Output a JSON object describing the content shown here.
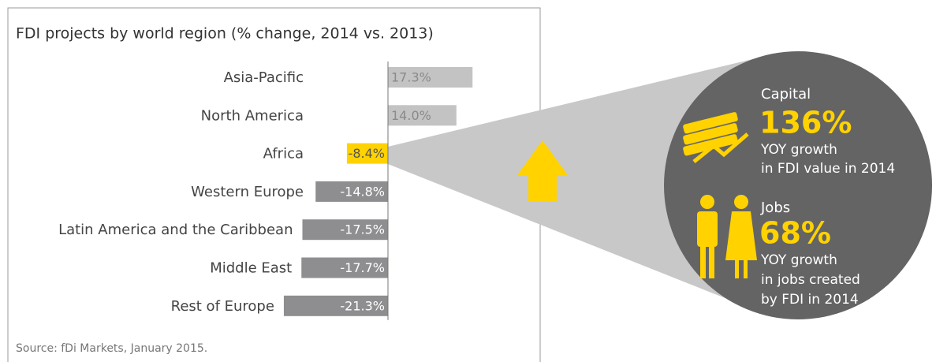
{
  "chart_data": {
    "type": "bar",
    "title": "FDI projects by world region (% change, 2014 vs. 2013)",
    "categories": [
      "Asia-Pacific",
      "North America",
      "Africa",
      "Western Europe",
      "Latin America and the Caribbean",
      "Middle East",
      "Rest of Europe"
    ],
    "values": [
      17.3,
      14.0,
      -8.4,
      -14.8,
      -17.5,
      -17.7,
      -21.3
    ],
    "value_labels": [
      "17.3%",
      "14.0%",
      "-8.4%",
      "-14.8%",
      "-17.5%",
      "-17.7%",
      "-21.3%"
    ],
    "colors": [
      "#c3c3c3",
      "#c3c3c3",
      "#ffd200",
      "#8e8e90",
      "#8e8e90",
      "#8e8e90",
      "#8e8e90"
    ],
    "source": "Source: fDi Markets, January 2015."
  },
  "callout": {
    "capital": {
      "label": "Capital",
      "value": "136%",
      "lines": [
        "YOY growth",
        "in FDI value in 2014"
      ]
    },
    "jobs": {
      "label": "Jobs",
      "value": "68%",
      "lines": [
        "YOY growth",
        "in jobs created",
        "by FDI in 2014"
      ]
    }
  }
}
